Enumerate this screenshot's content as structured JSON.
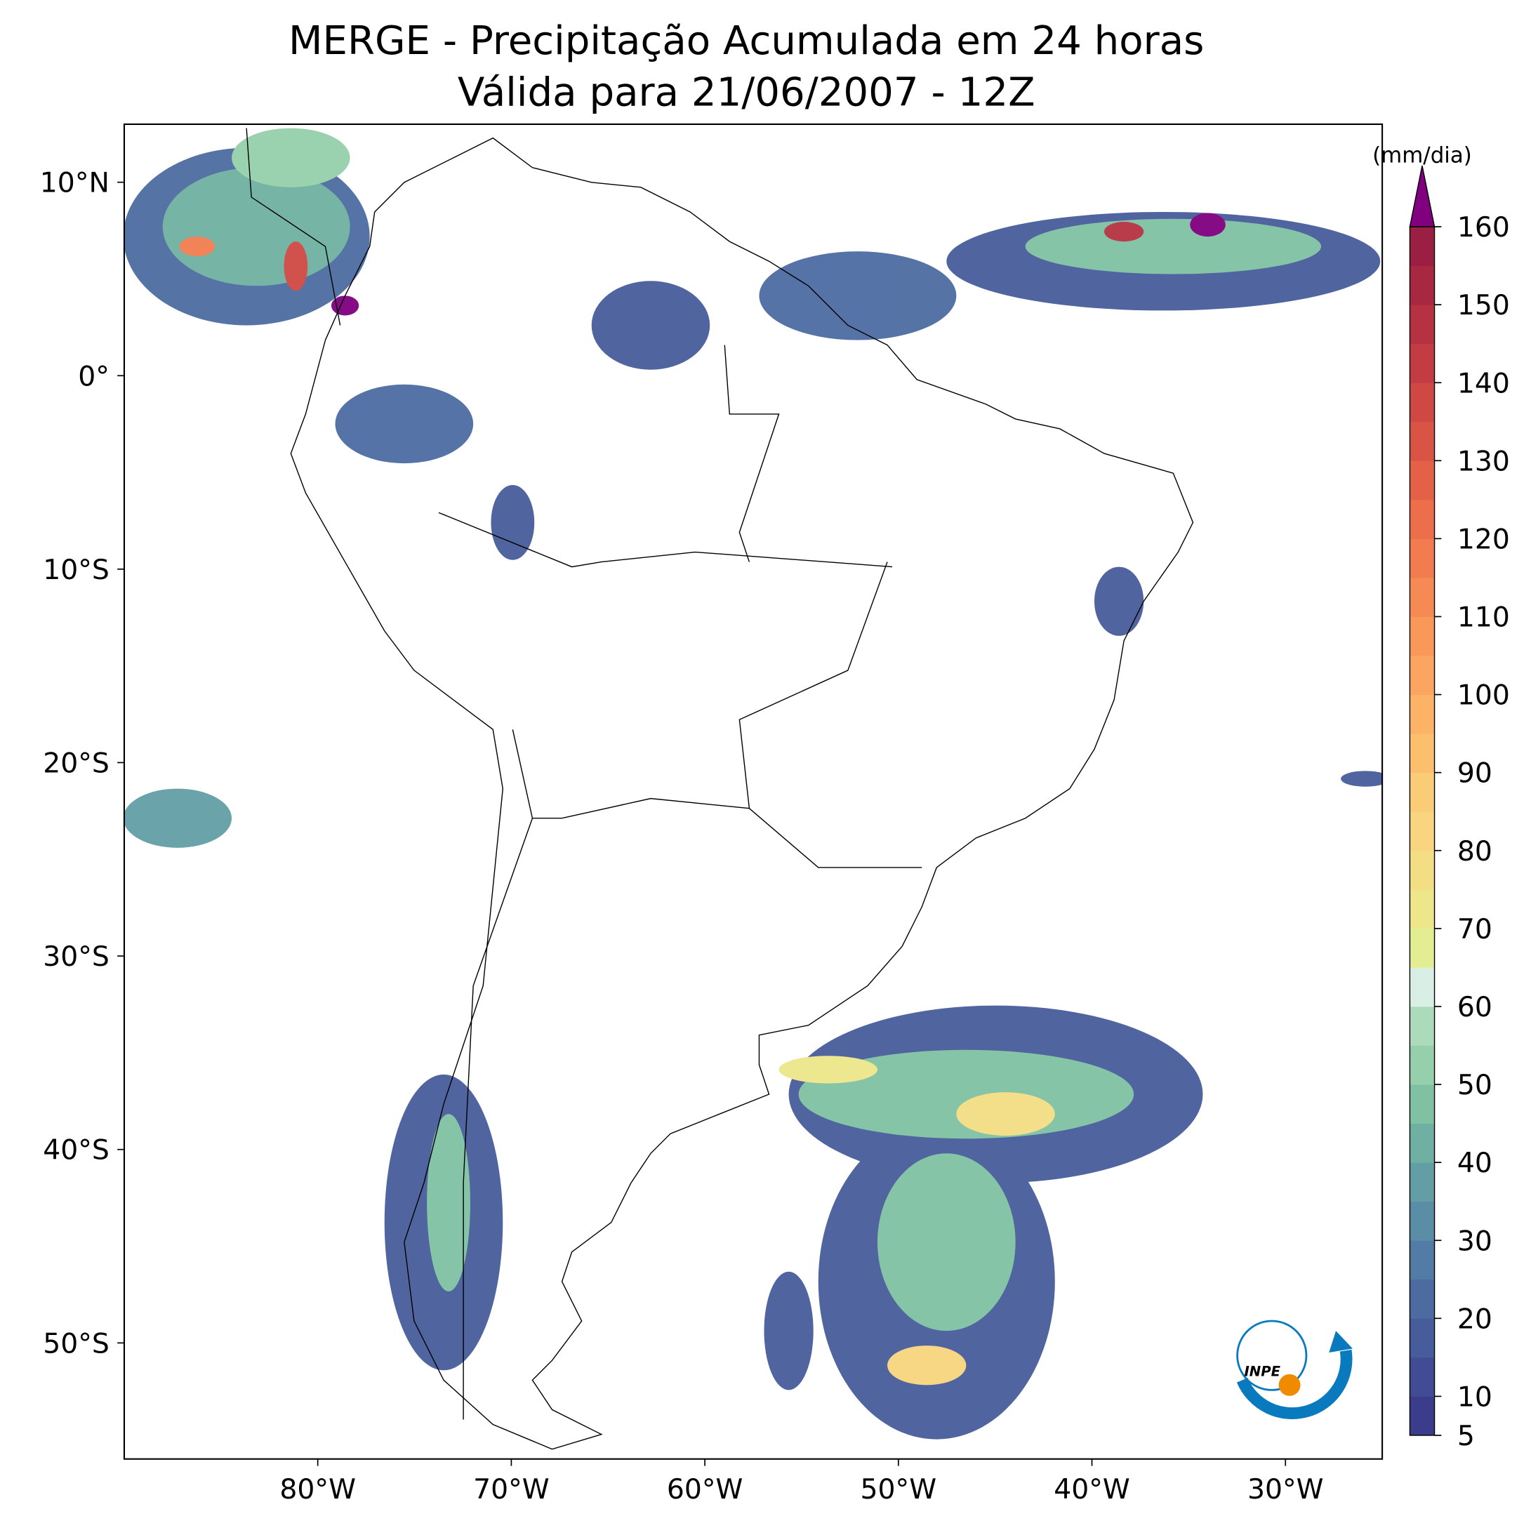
{
  "chart_data": {
    "type": "contour-map",
    "title": "MERGE - Precipitação Acumulada em 24 horas",
    "subtitle": "Válida para 21/06/2007 - 12Z",
    "xlim": [
      -90,
      -25
    ],
    "ylim": [
      -56,
      13
    ],
    "xticks": [
      {
        "value": -80,
        "label": "80°W"
      },
      {
        "value": -70,
        "label": "70°W"
      },
      {
        "value": -60,
        "label": "60°W"
      },
      {
        "value": -50,
        "label": "50°W"
      },
      {
        "value": -40,
        "label": "40°W"
      },
      {
        "value": -30,
        "label": "30°W"
      }
    ],
    "yticks": [
      {
        "value": 10,
        "label": "10°N"
      },
      {
        "value": 0,
        "label": "0°"
      },
      {
        "value": -10,
        "label": "10°S"
      },
      {
        "value": -20,
        "label": "20°S"
      },
      {
        "value": -30,
        "label": "30°S"
      },
      {
        "value": -40,
        "label": "40°S"
      },
      {
        "value": -50,
        "label": "50°S"
      }
    ],
    "colorbar": {
      "label": "(mm/dia)",
      "lim": [
        5,
        160
      ],
      "ticks": [
        5,
        10,
        20,
        30,
        40,
        50,
        60,
        70,
        80,
        90,
        100,
        110,
        120,
        130,
        140,
        150,
        160
      ],
      "colors": [
        "#3b3c8c",
        "#424c94",
        "#475c9b",
        "#4c6ca1",
        "#527ca5",
        "#5a8da6",
        "#639ea5",
        "#6fb0a2",
        "#80c1a3",
        "#95cfab",
        "#acdbbb",
        "#d9efe6",
        "#e3ee93",
        "#ede68a",
        "#f3de84",
        "#f8d57e",
        "#fbcc76",
        "#fcc06d",
        "#fcb366",
        "#fca560",
        "#fa985a",
        "#f68a54",
        "#f27c4f",
        "#ec6e4a",
        "#e46147",
        "#da5445",
        "#cf4844",
        "#c33c43",
        "#b63242",
        "#a82841",
        "#9a1f43"
      ],
      "over_color": "#800080"
    }
  }
}
